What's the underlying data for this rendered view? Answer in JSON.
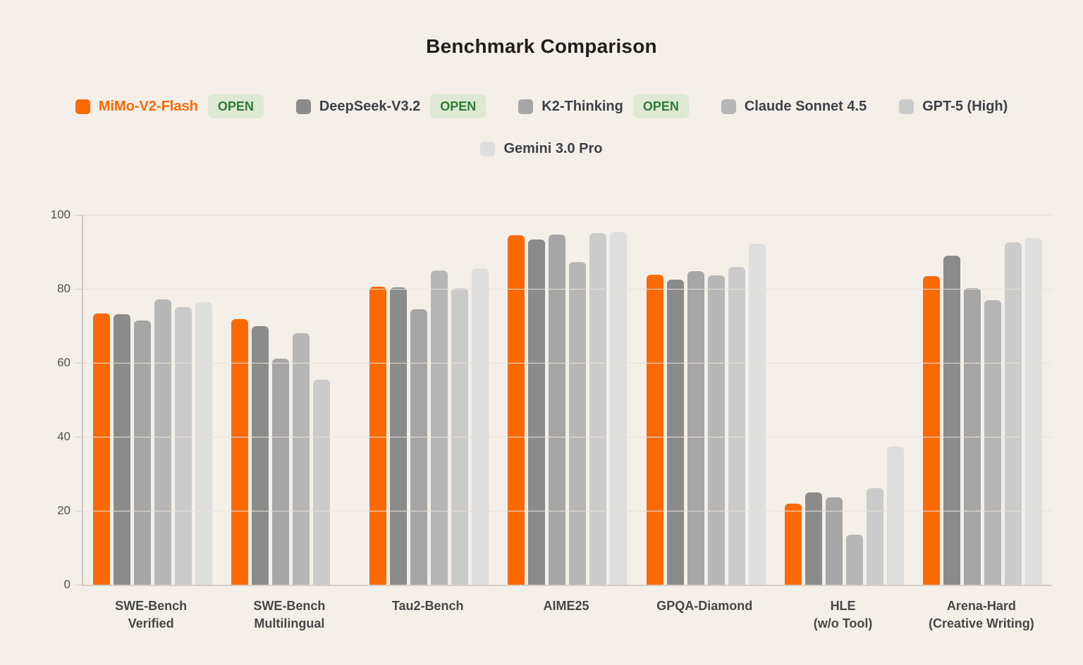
{
  "title": "Benchmark Comparison",
  "legend": {
    "open_badge_label": "OPEN",
    "rows": [
      [
        0,
        1,
        2,
        3,
        4
      ],
      [
        5
      ]
    ]
  },
  "colors": {
    "background": "#f4efe9",
    "gridline": "#e8e1d8",
    "axis": "#cfc8bf",
    "title_text": "#221e1b",
    "legend_text": "#3d4148",
    "tick_text": "#4f4f4f",
    "xlabel_text": "#474747",
    "badge_bg": "#dde9d3",
    "badge_text": "#2f7c36",
    "accent_orange": "#fb6a02"
  },
  "chart_data": {
    "type": "bar",
    "title": "Benchmark Comparison",
    "categories": [
      "SWE-Bench\nVerified",
      "SWE-Bench\nMultilingual",
      "Tau2-Bench",
      "AIME25",
      "GPQA-Diamond",
      "HLE\n(w/o Tool)",
      "Arena-Hard\n(Creative Writing)"
    ],
    "series": [
      {
        "name": "MiMo-V2-Flash",
        "open": true,
        "color": "#fb6a02",
        "values": [
          73.4,
          71.8,
          80.5,
          94.4,
          83.9,
          22.0,
          83.5
        ]
      },
      {
        "name": "DeepSeek-V3.2",
        "open": true,
        "color": "#8b8b8b",
        "values": [
          73.1,
          70.0,
          80.3,
          93.4,
          82.4,
          25.0,
          89.0
        ]
      },
      {
        "name": "K2-Thinking",
        "open": true,
        "color": "#a6a6a6",
        "values": [
          71.4,
          61.1,
          74.5,
          94.7,
          84.8,
          23.7,
          80.2
        ]
      },
      {
        "name": "Claude Sonnet 4.5",
        "open": false,
        "color": "#b7b7b7",
        "values": [
          77.2,
          68.0,
          85.0,
          87.3,
          83.7,
          13.5,
          76.9
        ]
      },
      {
        "name": "GPT-5 (High)",
        "open": false,
        "color": "#cbcbcb",
        "values": [
          75.0,
          55.4,
          80.2,
          95.0,
          85.9,
          26.1,
          92.5
        ]
      },
      {
        "name": "Gemini 3.0 Pro",
        "open": false,
        "color": "#dedede",
        "values": [
          76.3,
          null,
          85.6,
          95.4,
          92.2,
          37.4,
          93.8
        ]
      }
    ],
    "ylabel": "",
    "xlabel": "",
    "ylim": [
      0,
      100
    ],
    "yticks": [
      0,
      20,
      40,
      60,
      80,
      100
    ],
    "grid": true,
    "legend_position": "top"
  }
}
